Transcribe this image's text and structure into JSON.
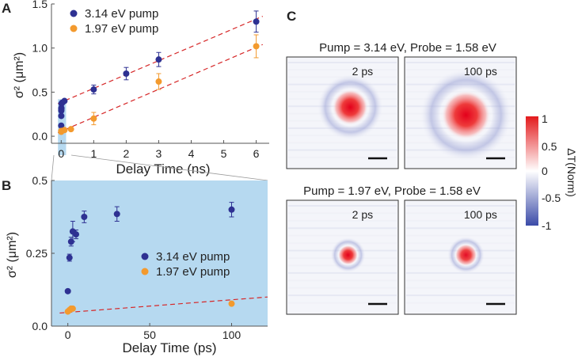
{
  "panels": {
    "a": {
      "letter": "A"
    },
    "b": {
      "letter": "B"
    },
    "c": {
      "letter": "C"
    }
  },
  "colors": {
    "blue": "#2e3192",
    "orange": "#f39a2e",
    "fit": "#d62728",
    "highlight": "#b6d9f0"
  },
  "chart_data": [
    {
      "id": "A",
      "type": "scatter",
      "xlabel": "Delay Time (ns)",
      "ylabel": "σ² (μm²)",
      "xlim": [
        -0.3,
        6.4
      ],
      "ylim": [
        -0.08,
        1.5
      ],
      "xticks": [
        "0",
        "1",
        "2",
        "3",
        "4",
        "5",
        "6"
      ],
      "yticks": [
        "0.0",
        "0.5",
        "1.0",
        "1.5"
      ],
      "legend_position": "top-left",
      "series": [
        {
          "name": "3.14 eV pump",
          "color": "#2e3192",
          "points": [
            {
              "x": 0.0,
              "y": 0.12,
              "err": 0.0
            },
            {
              "x": 0.002,
              "y": 0.23,
              "err": 0.0
            },
            {
              "x": 0.003,
              "y": 0.29,
              "err": 0.0
            },
            {
              "x": 0.004,
              "y": 0.31,
              "err": 0.0
            },
            {
              "x": 0.005,
              "y": 0.32,
              "err": 0.0
            },
            {
              "x": 0.01,
              "y": 0.37,
              "err": 0.0
            },
            {
              "x": 0.03,
              "y": 0.38,
              "err": 0.0
            },
            {
              "x": 0.1,
              "y": 0.4,
              "err": 0.0
            },
            {
              "x": 1.0,
              "y": 0.53,
              "err": 0.05
            },
            {
              "x": 2.0,
              "y": 0.71,
              "err": 0.07
            },
            {
              "x": 3.0,
              "y": 0.87,
              "err": 0.08
            },
            {
              "x": 6.0,
              "y": 1.3,
              "err": 0.12
            }
          ],
          "fit": {
            "x": [
              -0.1,
              6.2
            ],
            "y": [
              0.37,
              1.36
            ]
          }
        },
        {
          "name": "1.97 eV pump",
          "color": "#f39a2e",
          "points": [
            {
              "x": 0.0,
              "y": 0.05,
              "err": 0.0
            },
            {
              "x": 0.002,
              "y": 0.06,
              "err": 0.0
            },
            {
              "x": 0.1,
              "y": 0.07,
              "err": 0.0
            },
            {
              "x": 0.3,
              "y": 0.08,
              "err": 0.0
            },
            {
              "x": 1.0,
              "y": 0.2,
              "err": 0.07
            },
            {
              "x": 3.0,
              "y": 0.62,
              "err": 0.09
            },
            {
              "x": 6.0,
              "y": 1.02,
              "err": 0.13
            }
          ],
          "fit": {
            "x": [
              -0.1,
              6.2
            ],
            "y": [
              0.04,
              1.04
            ]
          }
        }
      ],
      "highlight": {
        "x": [
          -0.1,
          0.15
        ]
      }
    },
    {
      "id": "B",
      "type": "scatter",
      "xlabel": "Delay Time (ps)",
      "ylabel": "σ² (μm²)",
      "xlim": [
        -10,
        122
      ],
      "ylim": [
        0.0,
        0.5
      ],
      "xticks": [
        "0",
        "50",
        "100"
      ],
      "yticks": [
        "0.0",
        "0.25",
        "0.5"
      ],
      "legend_position": "center-right",
      "background": "#b6d9f0",
      "series": [
        {
          "name": "3.14 eV pump",
          "color": "#2e3192",
          "points": [
            {
              "x": 0,
              "y": 0.12,
              "err": 0.0
            },
            {
              "x": 1,
              "y": 0.235,
              "err": 0.012
            },
            {
              "x": 2,
              "y": 0.29,
              "err": 0.015
            },
            {
              "x": 3,
              "y": 0.325,
              "err": 0.035
            },
            {
              "x": 5,
              "y": 0.315,
              "err": 0.015
            },
            {
              "x": 10,
              "y": 0.375,
              "err": 0.02
            },
            {
              "x": 30,
              "y": 0.385,
              "err": 0.025
            },
            {
              "x": 100,
              "y": 0.4,
              "err": 0.025
            }
          ]
        },
        {
          "name": "1.97 eV pump",
          "color": "#f39a2e",
          "points": [
            {
              "x": 0,
              "y": 0.05,
              "err": 0.0
            },
            {
              "x": 1,
              "y": 0.055,
              "err": 0.0
            },
            {
              "x": 2,
              "y": 0.06,
              "err": 0.0
            },
            {
              "x": 3,
              "y": 0.06,
              "err": 0.0
            },
            {
              "x": 100,
              "y": 0.077,
              "err": 0.0
            }
          ],
          "fit": {
            "x": [
              -5,
              122
            ],
            "y": [
              0.045,
              0.1
            ]
          }
        }
      ]
    }
  ],
  "images": {
    "row1_title": "Pump = 3.14 eV, Probe = 1.58 eV",
    "row2_title": "Pump = 1.97 eV, Probe = 1.58 eV",
    "tiles": [
      {
        "label": "2 ps",
        "row": 0,
        "spot_r": 0.16,
        "ring_r": 0.3,
        "intensity": 1.0
      },
      {
        "label": "100 ps",
        "row": 0,
        "spot_r": 0.22,
        "ring_r": 0.42,
        "intensity": 1.0
      },
      {
        "label": "2 ps",
        "row": 1,
        "spot_r": 0.09,
        "ring_r": 0.16,
        "intensity": 1.0
      },
      {
        "label": "100 ps",
        "row": 1,
        "spot_r": 0.1,
        "ring_r": 0.17,
        "intensity": 0.95
      }
    ],
    "colorbar": {
      "label": "ΔT(Norm)",
      "ticks": [
        "1",
        "0.5",
        "0",
        "-0.5",
        "-1"
      ],
      "top_color": "#e31a1c",
      "mid_color": "#ffffff",
      "bottom_color": "#3b4ba8"
    }
  }
}
